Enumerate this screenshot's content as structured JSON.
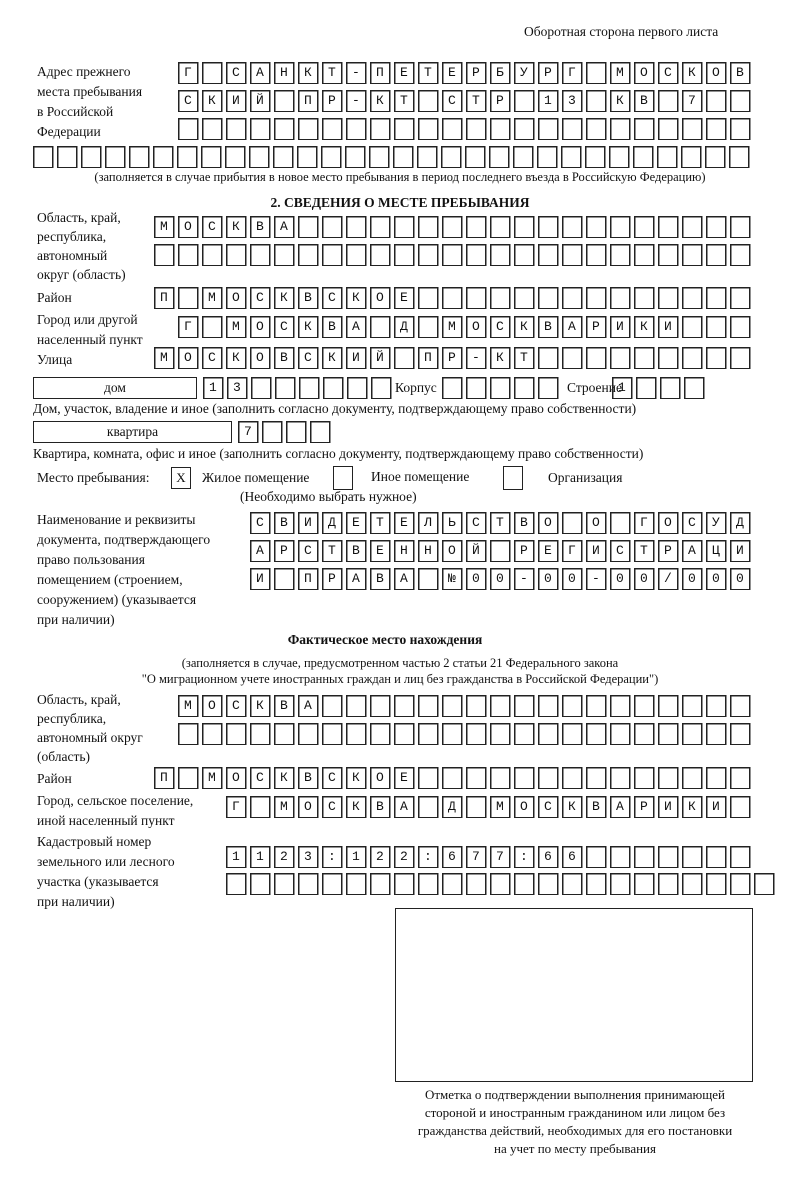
{
  "header": "Оборотная сторона первого листа",
  "prev_address": {
    "label": [
      "Адрес прежнего",
      "места пребывания",
      "в Российской",
      "Федерации"
    ],
    "rows": [
      "Г САНКТ-ПЕТЕРБУРГ МОСКОВ",
      "СКИЙ ПР-КТ СТР 13 КВ 7  ",
      "                        ",
      "                              "
    ],
    "note": "(заполняется в случае прибытия в новое место пребывания в период последнего въезда в Российскую Федерацию)"
  },
  "section2": {
    "title": "2. СВЕДЕНИЯ О МЕСТЕ ПРЕБЫВАНИЯ",
    "region_label": [
      "Область, край,",
      "республика,",
      "автономный",
      "округ (область)"
    ],
    "region_rows": [
      "МОСКВА                   ",
      "                         "
    ],
    "district_label": "Район",
    "district_row": "П МОСКВСКОЕ              ",
    "city_label": [
      "Город или другой",
      "населенный пункт"
    ],
    "city_row": "Г МОСКВА Д МОСКВАРИКИ   ",
    "street_label": "Улица",
    "street_row": "МОСКОВСКИЙ ПР-КТ         ",
    "house_type": "дом",
    "house_row": "13      ",
    "korpus_label": "Корпус",
    "korpus_row": "     ",
    "building_label": "Строение",
    "building_row": "1   ",
    "house_note": "Дом, участок, владение и иное (заполнить согласно документу, подтверждающему право собственности)",
    "flat_type": "квартира",
    "flat_row": "7   ",
    "flat_note": "Квартира, комната, офис и иное (заполнить согласно документу, подтверждающему право собственности)",
    "stay_label": "Место пребывания:",
    "stay_options": [
      {
        "label": "Жилое помещение",
        "mark": "X"
      },
      {
        "label": "Иное помещение",
        "mark": ""
      },
      {
        "label": "Организация",
        "mark": ""
      }
    ],
    "stay_note": "(Необходимо выбрать нужное)",
    "doc_label": [
      "Наименование и реквизиты",
      "документа, подтверждающего",
      "право пользования",
      "помещением (строением,",
      "сооружением) (указывается",
      "при наличии)"
    ],
    "doc_rows": [
      "СВИДЕТЕЛЬСТВО О ГОСУД",
      "АРСТВЕННОЙ РЕГИСТРАЦИ",
      "И ПРАВА №00-00-00/000"
    ]
  },
  "actual": {
    "title": "Фактическое место нахождения",
    "note": [
      "(заполняется в случае, предусмотренном частью 2 статьи 21 Федерального закона",
      "\"О миграционном учете иностранных граждан и лиц без гражданства в Российской Федерации\")"
    ],
    "region_label": [
      "Область, край,",
      "республика,",
      "автономный округ",
      "(область)"
    ],
    "region_rows": [
      "МОСКВА                  ",
      "                        "
    ],
    "district_label": "Район",
    "district_row": "П МОСКВСКОЕ              ",
    "city_label": [
      "Город, сельское поселение,",
      "иной населенный пункт"
    ],
    "city_row": "Г МОСКВА Д МОСКВАРИКИ ",
    "cadastre_label": [
      "Кадастровый номер",
      "земельного или лесного",
      "участка (указывается",
      "при наличии)"
    ],
    "cadastre_rows": [
      "1123:122:677:66       ",
      "                       "
    ]
  },
  "stamp_caption": [
    "Отметка о подтверждении выполнения принимающей",
    "стороной и иностранным гражданином или лицом без",
    "гражданства действий, необходимых для его постановки",
    "на учет по месту пребывания"
  ]
}
